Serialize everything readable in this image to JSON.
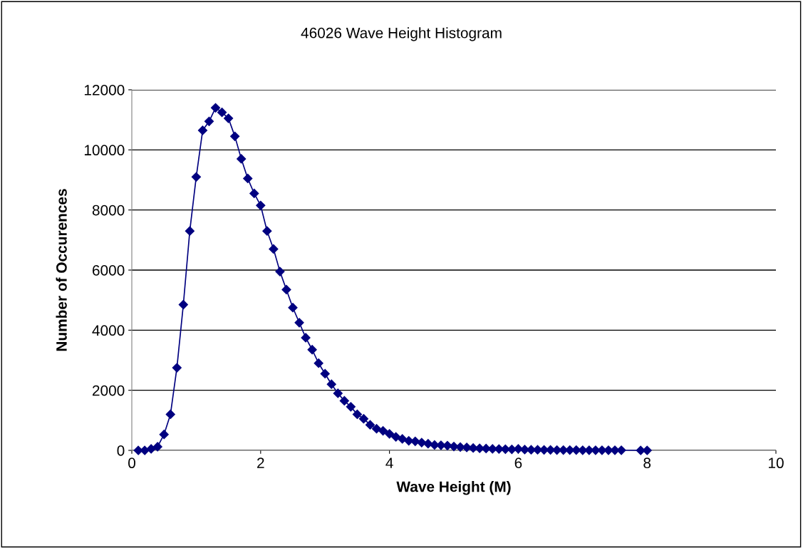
{
  "chart_data": {
    "type": "line",
    "title": "46026 Wave Height Histogram",
    "xlabel": "Wave Height (M)",
    "ylabel": "Number of Occurences",
    "x": [
      0.1,
      0.2,
      0.3,
      0.4,
      0.5,
      0.6,
      0.7,
      0.8,
      0.9,
      1.0,
      1.1,
      1.2,
      1.3,
      1.4,
      1.5,
      1.6,
      1.7,
      1.8,
      1.9,
      2.0,
      2.1,
      2.2,
      2.3,
      2.4,
      2.5,
      2.6,
      2.7,
      2.8,
      2.9,
      3.0,
      3.1,
      3.2,
      3.3,
      3.4,
      3.5,
      3.6,
      3.7,
      3.8,
      3.9,
      4.0,
      4.1,
      4.2,
      4.3,
      4.4,
      4.5,
      4.6,
      4.7,
      4.8,
      4.9,
      5.0,
      5.1,
      5.2,
      5.3,
      5.4,
      5.5,
      5.6,
      5.7,
      5.8,
      5.9,
      6.0,
      6.1,
      6.2,
      6.3,
      6.4,
      6.5,
      6.6,
      6.7,
      6.8,
      6.9,
      7.0,
      7.1,
      7.2,
      7.3,
      7.4,
      7.5,
      7.6,
      7.9,
      8.0
    ],
    "series": [
      {
        "color": "#000080",
        "values": [
          0,
          0,
          50,
          120,
          530,
          1200,
          2750,
          4850,
          7300,
          9100,
          10650,
          10950,
          11400,
          11250,
          11050,
          10450,
          9700,
          9050,
          8550,
          8150,
          7300,
          6700,
          5950,
          5350,
          4750,
          4250,
          3750,
          3350,
          2900,
          2550,
          2200,
          1900,
          1650,
          1450,
          1200,
          1050,
          850,
          720,
          650,
          550,
          450,
          380,
          320,
          300,
          260,
          220,
          180,
          170,
          160,
          130,
          110,
          100,
          80,
          70,
          60,
          50,
          45,
          40,
          35,
          50,
          25,
          20,
          20,
          15,
          15,
          10,
          10,
          10,
          10,
          5,
          5,
          5,
          5,
          5,
          5,
          5,
          0,
          0
        ]
      }
    ],
    "xlim": [
      0,
      10
    ],
    "xticks": [
      0,
      2,
      4,
      6,
      8,
      10
    ],
    "ylim": [
      0,
      12000
    ],
    "yticks": [
      0,
      2000,
      4000,
      6000,
      8000,
      10000,
      12000
    ],
    "grid": "y",
    "marker": "diamond",
    "line_style": "solid",
    "legend": false
  }
}
